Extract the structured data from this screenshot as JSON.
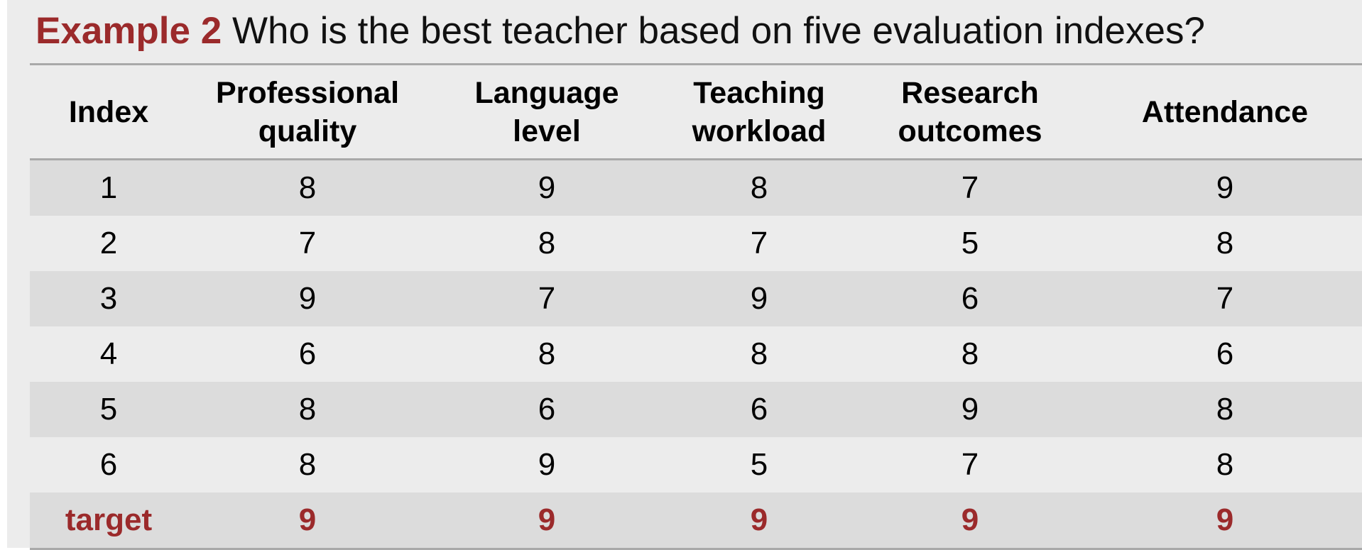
{
  "title": {
    "lead": "Example 2",
    "text": "Who is the best teacher based on five evaluation indexes?"
  },
  "table": {
    "headers": [
      [
        "Index"
      ],
      [
        "Professional",
        "quality"
      ],
      [
        "Language",
        "level"
      ],
      [
        "Teaching",
        "workload"
      ],
      [
        "Research",
        "outcomes"
      ],
      [
        "Attendance"
      ]
    ],
    "rows": [
      [
        "1",
        "8",
        "9",
        "8",
        "7",
        "9"
      ],
      [
        "2",
        "7",
        "8",
        "7",
        "5",
        "8"
      ],
      [
        "3",
        "9",
        "7",
        "9",
        "6",
        "7"
      ],
      [
        "4",
        "6",
        "8",
        "8",
        "8",
        "6"
      ],
      [
        "5",
        "8",
        "6",
        "6",
        "9",
        "8"
      ],
      [
        "6",
        "8",
        "9",
        "5",
        "7",
        "8"
      ]
    ],
    "target_row": [
      "target",
      "9",
      "9",
      "9",
      "9",
      "9"
    ]
  },
  "colors": {
    "accent": "#9b2a2b",
    "row_shade": "#dcdcdc",
    "background": "#ececec",
    "rule": "#a9a9a9"
  }
}
